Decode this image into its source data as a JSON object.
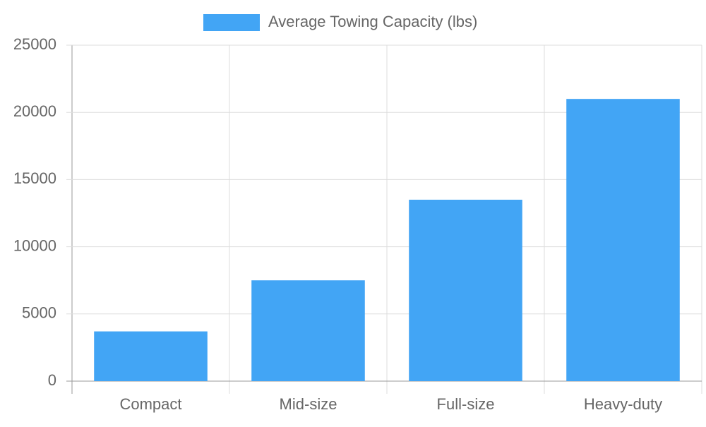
{
  "chart_data": {
    "type": "bar",
    "categories": [
      "Compact",
      "Mid-size",
      "Full-size",
      "Heavy-duty"
    ],
    "series": [
      {
        "name": "Average Towing Capacity (lbs)",
        "color": "#42a5f5",
        "values": [
          3700,
          7500,
          13500,
          21000
        ]
      }
    ],
    "ylim": [
      0,
      25000
    ],
    "yticks": [
      0,
      5000,
      10000,
      15000,
      20000,
      25000
    ],
    "grid": true,
    "legend": "top"
  }
}
